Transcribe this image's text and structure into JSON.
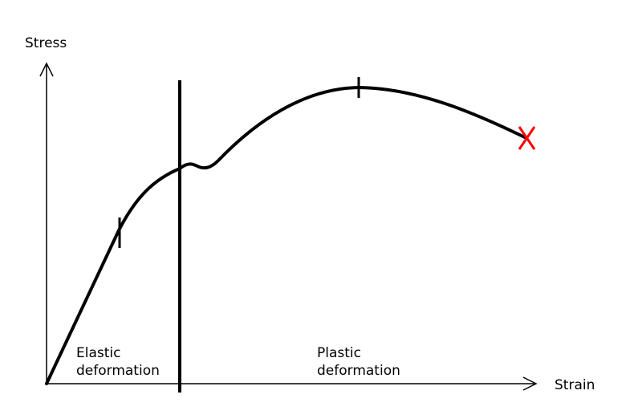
{
  "axes": {
    "y_label": "Stress",
    "x_label": "Strain"
  },
  "regions": {
    "elastic": {
      "line1": "Elastic",
      "line2": "deformation"
    },
    "plastic": {
      "line1": "Plastic",
      "line2": "deformation"
    }
  },
  "colors": {
    "curve": "#000000",
    "fracture_marker": "#ff0000",
    "axes": "#000000"
  },
  "markers": {
    "fracture_icon": "x-mark-icon",
    "tick_icon": "tick-mark-icon"
  }
}
